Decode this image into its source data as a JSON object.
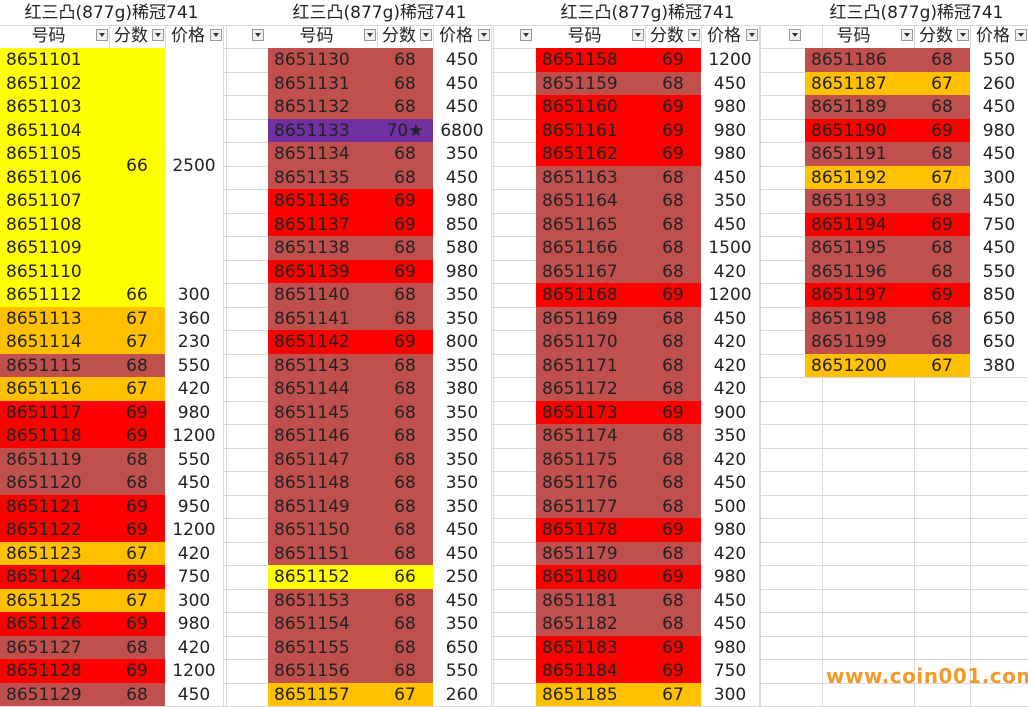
{
  "columns_header": {
    "number": "号码",
    "score": "分数",
    "price": "价格"
  },
  "blocks": [
    {
      "title": "红三凸(877g)稀冠741",
      "merged": {
        "score": "66",
        "price": "2500",
        "rows": 10
      },
      "rows": [
        {
          "n": "8651101",
          "s": "",
          "p": "",
          "c": "#ffff00"
        },
        {
          "n": "8651102",
          "s": "",
          "p": "",
          "c": "#ffff00"
        },
        {
          "n": "8651103",
          "s": "",
          "p": "",
          "c": "#ffff00"
        },
        {
          "n": "8651104",
          "s": "",
          "p": "",
          "c": "#ffff00"
        },
        {
          "n": "8651105",
          "s": "",
          "p": "",
          "c": "#ffff00"
        },
        {
          "n": "8651106",
          "s": "",
          "p": "",
          "c": "#ffff00"
        },
        {
          "n": "8651107",
          "s": "",
          "p": "",
          "c": "#ffff00"
        },
        {
          "n": "8651108",
          "s": "",
          "p": "",
          "c": "#ffff00"
        },
        {
          "n": "8651109",
          "s": "",
          "p": "",
          "c": "#ffff00"
        },
        {
          "n": "8651110",
          "s": "",
          "p": "",
          "c": "#ffff00"
        },
        {
          "n": "8651112",
          "s": "66",
          "p": "300",
          "c": "#ffff00"
        },
        {
          "n": "8651113",
          "s": "67",
          "p": "360",
          "c": "#ffc000"
        },
        {
          "n": "8651114",
          "s": "67",
          "p": "230",
          "c": "#ffc000"
        },
        {
          "n": "8651115",
          "s": "68",
          "p": "550",
          "c": "#c0504d"
        },
        {
          "n": "8651116",
          "s": "67",
          "p": "420",
          "c": "#ffc000"
        },
        {
          "n": "8651117",
          "s": "69",
          "p": "980",
          "c": "#ff0000"
        },
        {
          "n": "8651118",
          "s": "69",
          "p": "1200",
          "c": "#ff0000"
        },
        {
          "n": "8651119",
          "s": "68",
          "p": "550",
          "c": "#c0504d"
        },
        {
          "n": "8651120",
          "s": "68",
          "p": "450",
          "c": "#c0504d"
        },
        {
          "n": "8651121",
          "s": "69",
          "p": "950",
          "c": "#ff0000"
        },
        {
          "n": "8651122",
          "s": "69",
          "p": "1200",
          "c": "#ff0000"
        },
        {
          "n": "8651123",
          "s": "67",
          "p": "420",
          "c": "#ffc000"
        },
        {
          "n": "8651124",
          "s": "69",
          "p": "750",
          "c": "#ff0000"
        },
        {
          "n": "8651125",
          "s": "67",
          "p": "300",
          "c": "#ffc000"
        },
        {
          "n": "8651126",
          "s": "69",
          "p": "980",
          "c": "#ff0000"
        },
        {
          "n": "8651127",
          "s": "68",
          "p": "420",
          "c": "#c0504d"
        },
        {
          "n": "8651128",
          "s": "69",
          "p": "1200",
          "c": "#ff0000"
        },
        {
          "n": "8651129",
          "s": "68",
          "p": "450",
          "c": "#c0504d"
        }
      ]
    },
    {
      "title": "红三凸(877g)稀冠741",
      "rows": [
        {
          "n": "8651130",
          "s": "68",
          "p": "450",
          "c": "#c0504d"
        },
        {
          "n": "8651131",
          "s": "68",
          "p": "450",
          "c": "#c0504d"
        },
        {
          "n": "8651132",
          "s": "68",
          "p": "450",
          "c": "#c0504d"
        },
        {
          "n": "8651133",
          "s": "70★",
          "p": "6800",
          "c": "#7030a0"
        },
        {
          "n": "8651134",
          "s": "68",
          "p": "350",
          "c": "#c0504d"
        },
        {
          "n": "8651135",
          "s": "68",
          "p": "450",
          "c": "#c0504d"
        },
        {
          "n": "8651136",
          "s": "69",
          "p": "980",
          "c": "#ff0000"
        },
        {
          "n": "8651137",
          "s": "69",
          "p": "850",
          "c": "#ff0000"
        },
        {
          "n": "8651138",
          "s": "68",
          "p": "580",
          "c": "#c0504d"
        },
        {
          "n": "8651139",
          "s": "69",
          "p": "980",
          "c": "#ff0000"
        },
        {
          "n": "8651140",
          "s": "68",
          "p": "350",
          "c": "#c0504d"
        },
        {
          "n": "8651141",
          "s": "68",
          "p": "350",
          "c": "#c0504d"
        },
        {
          "n": "8651142",
          "s": "69",
          "p": "800",
          "c": "#ff0000"
        },
        {
          "n": "8651143",
          "s": "68",
          "p": "350",
          "c": "#c0504d"
        },
        {
          "n": "8651144",
          "s": "68",
          "p": "380",
          "c": "#c0504d"
        },
        {
          "n": "8651145",
          "s": "68",
          "p": "350",
          "c": "#c0504d"
        },
        {
          "n": "8651146",
          "s": "68",
          "p": "350",
          "c": "#c0504d"
        },
        {
          "n": "8651147",
          "s": "68",
          "p": "350",
          "c": "#c0504d"
        },
        {
          "n": "8651148",
          "s": "68",
          "p": "350",
          "c": "#c0504d"
        },
        {
          "n": "8651149",
          "s": "68",
          "p": "350",
          "c": "#c0504d"
        },
        {
          "n": "8651150",
          "s": "68",
          "p": "450",
          "c": "#c0504d"
        },
        {
          "n": "8651151",
          "s": "68",
          "p": "450",
          "c": "#c0504d"
        },
        {
          "n": "8651152",
          "s": "66",
          "p": "250",
          "c": "#ffff00"
        },
        {
          "n": "8651153",
          "s": "68",
          "p": "450",
          "c": "#c0504d"
        },
        {
          "n": "8651154",
          "s": "68",
          "p": "350",
          "c": "#c0504d"
        },
        {
          "n": "8651155",
          "s": "68",
          "p": "650",
          "c": "#c0504d"
        },
        {
          "n": "8651156",
          "s": "68",
          "p": "550",
          "c": "#c0504d"
        },
        {
          "n": "8651157",
          "s": "67",
          "p": "260",
          "c": "#ffc000"
        }
      ]
    },
    {
      "title": "红三凸(877g)稀冠741",
      "rows": [
        {
          "n": "8651158",
          "s": "69",
          "p": "1200",
          "c": "#ff0000"
        },
        {
          "n": "8651159",
          "s": "68",
          "p": "450",
          "c": "#c0504d"
        },
        {
          "n": "8651160",
          "s": "69",
          "p": "980",
          "c": "#ff0000"
        },
        {
          "n": "8651161",
          "s": "69",
          "p": "980",
          "c": "#ff0000"
        },
        {
          "n": "8651162",
          "s": "69",
          "p": "980",
          "c": "#ff0000"
        },
        {
          "n": "8651163",
          "s": "68",
          "p": "450",
          "c": "#c0504d"
        },
        {
          "n": "8651164",
          "s": "68",
          "p": "350",
          "c": "#c0504d"
        },
        {
          "n": "8651165",
          "s": "68",
          "p": "450",
          "c": "#c0504d"
        },
        {
          "n": "8651166",
          "s": "68",
          "p": "1500",
          "c": "#c0504d"
        },
        {
          "n": "8651167",
          "s": "68",
          "p": "420",
          "c": "#c0504d"
        },
        {
          "n": "8651168",
          "s": "69",
          "p": "1200",
          "c": "#ff0000"
        },
        {
          "n": "8651169",
          "s": "68",
          "p": "450",
          "c": "#c0504d"
        },
        {
          "n": "8651170",
          "s": "68",
          "p": "420",
          "c": "#c0504d"
        },
        {
          "n": "8651171",
          "s": "68",
          "p": "420",
          "c": "#c0504d"
        },
        {
          "n": "8651172",
          "s": "68",
          "p": "420",
          "c": "#c0504d"
        },
        {
          "n": "8651173",
          "s": "69",
          "p": "900",
          "c": "#ff0000"
        },
        {
          "n": "8651174",
          "s": "68",
          "p": "350",
          "c": "#c0504d"
        },
        {
          "n": "8651175",
          "s": "68",
          "p": "420",
          "c": "#c0504d"
        },
        {
          "n": "8651176",
          "s": "68",
          "p": "450",
          "c": "#c0504d"
        },
        {
          "n": "8651177",
          "s": "68",
          "p": "500",
          "c": "#c0504d"
        },
        {
          "n": "8651178",
          "s": "69",
          "p": "980",
          "c": "#ff0000"
        },
        {
          "n": "8651179",
          "s": "68",
          "p": "420",
          "c": "#c0504d"
        },
        {
          "n": "8651180",
          "s": "69",
          "p": "980",
          "c": "#ff0000"
        },
        {
          "n": "8651181",
          "s": "68",
          "p": "450",
          "c": "#c0504d"
        },
        {
          "n": "8651182",
          "s": "68",
          "p": "450",
          "c": "#c0504d"
        },
        {
          "n": "8651183",
          "s": "69",
          "p": "980",
          "c": "#ff0000"
        },
        {
          "n": "8651184",
          "s": "69",
          "p": "750",
          "c": "#ff0000"
        },
        {
          "n": "8651185",
          "s": "67",
          "p": "300",
          "c": "#ffc000"
        }
      ]
    },
    {
      "title": "红三凸(877g)稀冠741",
      "rows": [
        {
          "n": "8651186",
          "s": "68",
          "p": "550",
          "c": "#c0504d"
        },
        {
          "n": "8651187",
          "s": "67",
          "p": "260",
          "c": "#ffc000"
        },
        {
          "n": "8651189",
          "s": "68",
          "p": "450",
          "c": "#c0504d"
        },
        {
          "n": "8651190",
          "s": "69",
          "p": "980",
          "c": "#ff0000"
        },
        {
          "n": "8651191",
          "s": "68",
          "p": "450",
          "c": "#c0504d"
        },
        {
          "n": "8651192",
          "s": "67",
          "p": "300",
          "c": "#ffc000"
        },
        {
          "n": "8651193",
          "s": "68",
          "p": "450",
          "c": "#c0504d"
        },
        {
          "n": "8651194",
          "s": "69",
          "p": "750",
          "c": "#ff0000"
        },
        {
          "n": "8651195",
          "s": "68",
          "p": "450",
          "c": "#c0504d"
        },
        {
          "n": "8651196",
          "s": "68",
          "p": "550",
          "c": "#c0504d"
        },
        {
          "n": "8651197",
          "s": "69",
          "p": "850",
          "c": "#ff0000"
        },
        {
          "n": "8651198",
          "s": "68",
          "p": "650",
          "c": "#c0504d"
        },
        {
          "n": "8651199",
          "s": "68",
          "p": "650",
          "c": "#c0504d"
        },
        {
          "n": "8651200",
          "s": "67",
          "p": "380",
          "c": "#ffc000"
        }
      ]
    }
  ],
  "watermark": "www.coin001.com",
  "colors": {
    "grid": "#d9d9d9",
    "watermark": "#f39a2c"
  }
}
